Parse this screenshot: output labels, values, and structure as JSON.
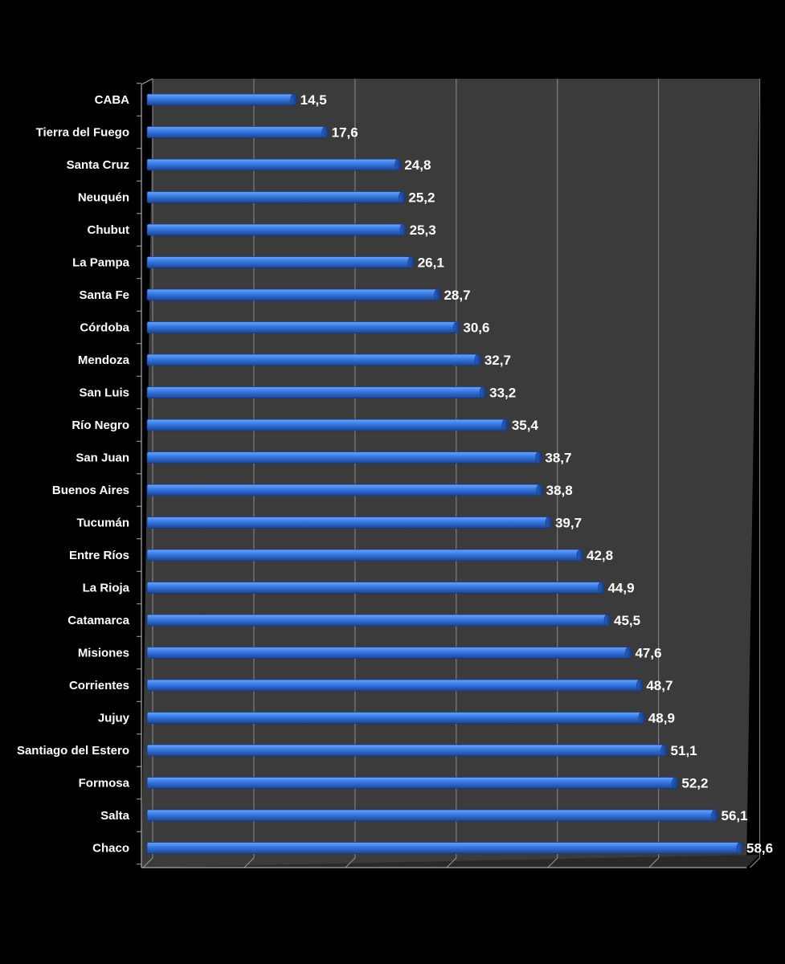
{
  "chart_data": {
    "type": "bar",
    "orientation": "horizontal",
    "categories": [
      "CABA",
      "Tierra del Fuego",
      "Santa Cruz",
      "Neuquén",
      "Chubut",
      "La Pampa",
      "Santa Fe",
      "Córdoba",
      "Mendoza",
      "San Luis",
      "Río Negro",
      "San Juan",
      "Buenos Aires",
      "Tucumán",
      "Entre Ríos",
      "La Rioja",
      "Catamarca",
      "Misiones",
      "Corrientes",
      "Jujuy",
      "Santiago del Estero",
      "Formosa",
      "Salta",
      "Chaco"
    ],
    "values": [
      14.5,
      17.6,
      24.8,
      25.2,
      25.3,
      26.1,
      28.7,
      30.6,
      32.7,
      33.2,
      35.4,
      38.7,
      38.8,
      39.7,
      42.8,
      44.9,
      45.5,
      47.6,
      48.7,
      48.9,
      51.1,
      52.2,
      56.1,
      58.6
    ],
    "value_labels": [
      "14,5",
      "17,6",
      "24,8",
      "25,2",
      "25,3",
      "26,1",
      "28,7",
      "30,6",
      "32,7",
      "33,2",
      "35,4",
      "38,7",
      "38,8",
      "39,7",
      "42,8",
      "44,9",
      "45,5",
      "47,6",
      "48,7",
      "48,9",
      "51,1",
      "52,2",
      "56,1",
      "58,6"
    ],
    "title": "",
    "xlabel": "",
    "ylabel": "",
    "xlim": [
      0,
      60
    ],
    "grid": true,
    "colors": {
      "background": "#000000",
      "plot_area": "#3c3c3c",
      "bar": "#2f6fd6",
      "bar_light": "#5f9bff",
      "bar_dark": "#1d4aa0",
      "gridline": "#8a8a8a",
      "text": "#ffffff"
    }
  }
}
